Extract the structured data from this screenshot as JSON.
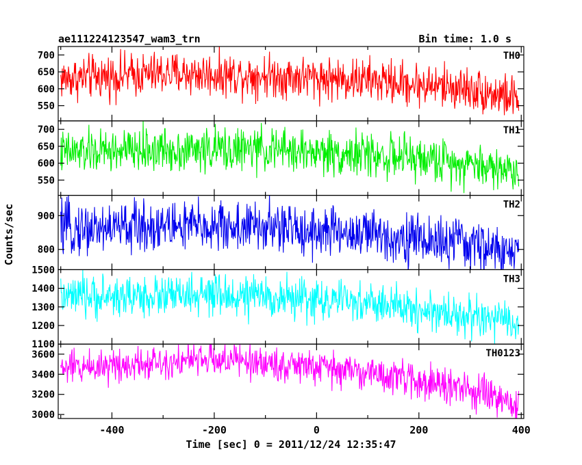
{
  "header": {
    "title": "ae111224123547_wam3_trn",
    "bin_time": "Bin time: 1.0 s"
  },
  "ylabel": "Counts/sec",
  "xlabel": "Time [sec] 0 = 2011/12/24 12:35:47",
  "chart_data": [
    {
      "type": "line",
      "name": "TH0",
      "color": "#ff0000",
      "xlim": [
        -505,
        405
      ],
      "ylim": [
        505,
        725
      ],
      "yticks": [
        550,
        600,
        650,
        700
      ],
      "trend": [
        [
          -500,
          630
        ],
        [
          -300,
          645
        ],
        [
          -100,
          640
        ],
        [
          100,
          625
        ],
        [
          300,
          600
        ],
        [
          395,
          570
        ]
      ],
      "noise": 32
    },
    {
      "type": "line",
      "name": "TH1",
      "color": "#00ee00",
      "xlim": [
        -505,
        405
      ],
      "ylim": [
        505,
        725
      ],
      "yticks": [
        550,
        600,
        650,
        700
      ],
      "trend": [
        [
          -500,
          630
        ],
        [
          -300,
          640
        ],
        [
          -100,
          640
        ],
        [
          100,
          625
        ],
        [
          300,
          600
        ],
        [
          395,
          575
        ]
      ],
      "noise": 32
    },
    {
      "type": "line",
      "name": "TH2",
      "color": "#0000ee",
      "xlim": [
        -505,
        405
      ],
      "ylim": [
        740,
        960
      ],
      "yticks": [
        800,
        900
      ],
      "trend": [
        [
          -500,
          860
        ],
        [
          -300,
          870
        ],
        [
          -100,
          865
        ],
        [
          100,
          845
        ],
        [
          300,
          815
        ],
        [
          395,
          780
        ]
      ],
      "noise": 38
    },
    {
      "type": "line",
      "name": "TH3",
      "color": "#00ffff",
      "xlim": [
        -505,
        405
      ],
      "ylim": [
        1100,
        1500
      ],
      "yticks": [
        1100,
        1200,
        1300,
        1400,
        1500
      ],
      "trend": [
        [
          -500,
          1350
        ],
        [
          -300,
          1360
        ],
        [
          -100,
          1355
        ],
        [
          100,
          1320
        ],
        [
          300,
          1250
        ],
        [
          395,
          1205
        ]
      ],
      "noise": 55
    },
    {
      "type": "line",
      "name": "TH0123",
      "color": "#ff00ff",
      "xlim": [
        -505,
        405
      ],
      "ylim": [
        2960,
        3700
      ],
      "yticks": [
        3000,
        3200,
        3400,
        3600
      ],
      "trend": [
        [
          -500,
          3460
        ],
        [
          -300,
          3530
        ],
        [
          -200,
          3550
        ],
        [
          -100,
          3510
        ],
        [
          100,
          3420
        ],
        [
          300,
          3240
        ],
        [
          395,
          3080
        ]
      ],
      "noise": 85
    }
  ],
  "xticks": [
    -400,
    -200,
    0,
    200,
    400
  ]
}
